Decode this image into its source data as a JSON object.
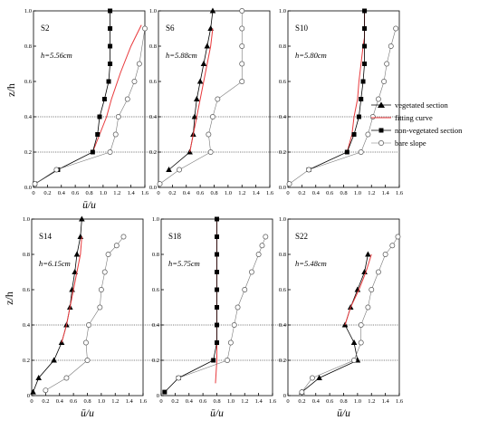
{
  "chart_data": [
    {
      "type": "line",
      "title": "S2",
      "annotation": "h=5.56cm",
      "xlabel": "ū/u",
      "ylabel": "z/h",
      "xlim": [
        0,
        1.6
      ],
      "ylim": [
        0,
        1
      ],
      "xticks": [
        "0",
        "0.2",
        "0.4",
        "0.6",
        "0.8",
        "1.0",
        "1.2",
        "1.4",
        "1.6"
      ],
      "yticks": [
        "0.0",
        "0.2",
        "0.4",
        "0.6",
        "0.8",
        "1.0"
      ],
      "series": [
        {
          "name": "vegetated section",
          "marker": "triangle",
          "x": [],
          "y": []
        },
        {
          "name": "fitting curve",
          "color": "#e8393c",
          "x": [
            0.85,
            0.95,
            1.05,
            1.12,
            1.25,
            1.4,
            1.55
          ],
          "y": [
            0.2,
            0.3,
            0.4,
            0.5,
            0.65,
            0.8,
            0.92
          ]
        },
        {
          "name": "non-vegetated section",
          "marker": "square",
          "x": [
            0.02,
            0.35,
            0.85,
            0.92,
            0.95,
            1.02,
            1.08,
            1.1,
            1.1,
            1.1,
            1.1
          ],
          "y": [
            0.02,
            0.1,
            0.2,
            0.3,
            0.4,
            0.5,
            0.6,
            0.7,
            0.8,
            0.9,
            1.0
          ]
        },
        {
          "name": "bare slope",
          "marker": "circle",
          "x": [
            0.02,
            0.33,
            1.1,
            1.18,
            1.22,
            1.35,
            1.45,
            1.52,
            1.6
          ],
          "y": [
            0.02,
            0.1,
            0.2,
            0.3,
            0.4,
            0.5,
            0.6,
            0.7,
            0.9
          ]
        }
      ],
      "guides_y": [
        0.2,
        0.4
      ]
    },
    {
      "type": "line",
      "title": "S6",
      "annotation": "h=5.88cm",
      "xlabel": "",
      "ylabel": "",
      "xlim": [
        0,
        1.6
      ],
      "ylim": [
        0,
        1
      ],
      "xticks": [
        "0",
        "0.2",
        "0.4",
        "0.6",
        "0.8",
        "1.0",
        "1.2",
        "1.4",
        "1.6"
      ],
      "yticks": [
        "0.0",
        "0.2",
        "0.4",
        "0.6",
        "0.8",
        "1.0"
      ],
      "series": [
        {
          "name": "vegetated section",
          "marker": "triangle",
          "x": [
            0.15,
            0.45,
            0.5,
            0.52,
            0.55,
            0.6,
            0.65,
            0.7,
            0.75,
            0.78
          ],
          "y": [
            0.1,
            0.2,
            0.3,
            0.4,
            0.5,
            0.6,
            0.7,
            0.8,
            0.9,
            1.0
          ]
        },
        {
          "name": "fitting curve",
          "color": "#e8393c",
          "x": [
            0.45,
            0.5,
            0.55,
            0.6,
            0.65,
            0.7,
            0.75,
            0.78
          ],
          "y": [
            0.2,
            0.3,
            0.4,
            0.5,
            0.6,
            0.7,
            0.8,
            0.9
          ]
        },
        {
          "name": "non-vegetated section",
          "marker": "square",
          "x": [],
          "y": []
        },
        {
          "name": "bare slope",
          "marker": "circle",
          "x": [
            0.02,
            0.3,
            0.75,
            0.72,
            0.78,
            0.85,
            1.2,
            1.2,
            1.2,
            1.2,
            1.2
          ],
          "y": [
            0.02,
            0.1,
            0.2,
            0.3,
            0.4,
            0.5,
            0.6,
            0.7,
            0.8,
            0.9,
            1.0
          ]
        }
      ],
      "guides_y": [
        0.2,
        0.4
      ]
    },
    {
      "type": "line",
      "title": "S10",
      "annotation": "h=5.80cm",
      "xlabel": "",
      "ylabel": "",
      "xlim": [
        0,
        1.6
      ],
      "ylim": [
        0,
        1
      ],
      "xticks": [
        "0",
        "0.2",
        "0.4",
        "0.6",
        "0.8",
        "1.0",
        "1.2",
        "1.4",
        "1.6"
      ],
      "yticks": [
        "0.0",
        "0.2",
        "0.4",
        "0.6",
        "0.8",
        "1.0"
      ],
      "series": [
        {
          "name": "vegetated section",
          "marker": "triangle",
          "x": [],
          "y": []
        },
        {
          "name": "fitting curve",
          "color": "#e8393c",
          "x": [
            0.85,
            0.92,
            0.95,
            1.0,
            1.02,
            1.05,
            1.08,
            1.1,
            1.1,
            1.1
          ],
          "y": [
            0.2,
            0.3,
            0.4,
            0.5,
            0.6,
            0.7,
            0.8,
            0.85,
            0.9,
            1.0
          ]
        },
        {
          "name": "non-vegetated section",
          "marker": "square",
          "x": [
            0.3,
            0.85,
            0.95,
            1.02,
            1.05,
            1.08,
            1.1,
            1.1,
            1.1,
            1.1
          ],
          "y": [
            0.1,
            0.2,
            0.3,
            0.4,
            0.5,
            0.6,
            0.7,
            0.8,
            0.9,
            1.0
          ]
        },
        {
          "name": "bare slope",
          "marker": "circle",
          "x": [
            0.02,
            0.3,
            1.05,
            1.15,
            1.22,
            1.3,
            1.38,
            1.42,
            1.48,
            1.55
          ],
          "y": [
            0.02,
            0.1,
            0.2,
            0.3,
            0.4,
            0.5,
            0.6,
            0.7,
            0.8,
            0.9
          ]
        }
      ],
      "guides_y": [
        0.2,
        0.4
      ]
    },
    {
      "type": "line",
      "title": "S14",
      "annotation": "h=6.15cm",
      "xlabel": "ū/u",
      "ylabel": "z/h",
      "xlim": [
        0,
        1.6
      ],
      "ylim": [
        0,
        1
      ],
      "xticks": [
        "0",
        "0.2",
        "0.4",
        "0.6",
        "0.8",
        "1.0",
        "1.2",
        "1.4",
        "1.6"
      ],
      "yticks": [
        "0",
        "0.2",
        "0.4",
        "0.6",
        "0.8",
        "1.0"
      ],
      "series": [
        {
          "name": "vegetated section",
          "marker": "triangle",
          "x": [
            0.02,
            0.1,
            0.32,
            0.43,
            0.5,
            0.55,
            0.58,
            0.62,
            0.65,
            0.7,
            0.72
          ],
          "y": [
            0.02,
            0.1,
            0.2,
            0.3,
            0.4,
            0.5,
            0.6,
            0.7,
            0.8,
            0.9,
            1.0
          ]
        },
        {
          "name": "fitting curve",
          "color": "#e8393c",
          "x": [
            0.43,
            0.5,
            0.55,
            0.6,
            0.65,
            0.7,
            0.72
          ],
          "y": [
            0.3,
            0.4,
            0.5,
            0.6,
            0.7,
            0.8,
            0.9
          ]
        },
        {
          "name": "non-vegetated section",
          "marker": "square",
          "x": [],
          "y": []
        },
        {
          "name": "bare slope",
          "marker": "circle",
          "x": [
            0.2,
            0.5,
            0.8,
            0.78,
            0.82,
            0.98,
            1.0,
            1.05,
            1.1,
            1.22,
            1.32
          ],
          "y": [
            0.03,
            0.1,
            0.2,
            0.3,
            0.4,
            0.5,
            0.6,
            0.7,
            0.8,
            0.85,
            0.9
          ]
        }
      ],
      "guides_y": [
        0.2,
        0.4
      ]
    },
    {
      "type": "line",
      "title": "S18",
      "annotation": "h=5.75cm",
      "xlabel": "ū/u",
      "ylabel": "",
      "xlim": [
        0,
        1.6
      ],
      "ylim": [
        0,
        1
      ],
      "xticks": [
        "0",
        "0.2",
        "0.4",
        "0.6",
        "0.8",
        "1.0",
        "1.2",
        "1.4",
        "1.6"
      ],
      "yticks": [
        "0",
        "0.2",
        "0.4",
        "0.6",
        "0.8",
        "1.0"
      ],
      "series": [
        {
          "name": "vegetated section",
          "marker": "triangle",
          "x": [],
          "y": []
        },
        {
          "name": "fitting curve",
          "color": "#e8393c",
          "x": [
            0.78,
            0.8,
            0.8,
            0.8,
            0.8,
            0.8,
            0.8,
            0.8,
            0.8
          ],
          "y": [
            0.07,
            0.2,
            0.3,
            0.4,
            0.5,
            0.6,
            0.7,
            0.8,
            1.0
          ]
        },
        {
          "name": "non-vegetated section",
          "marker": "square",
          "x": [
            0.05,
            0.25,
            0.75,
            0.8,
            0.8,
            0.8,
            0.8,
            0.8,
            0.8,
            0.8,
            0.8
          ],
          "y": [
            0.02,
            0.1,
            0.2,
            0.3,
            0.4,
            0.5,
            0.6,
            0.7,
            0.8,
            0.9,
            1.0
          ]
        },
        {
          "name": "bare slope",
          "marker": "circle",
          "x": [
            0.25,
            0.95,
            1.0,
            1.05,
            1.1,
            1.2,
            1.3,
            1.4,
            1.45,
            1.5
          ],
          "y": [
            0.1,
            0.2,
            0.3,
            0.4,
            0.5,
            0.6,
            0.7,
            0.8,
            0.85,
            0.9
          ]
        }
      ],
      "guides_y": [
        0.2,
        0.4
      ]
    },
    {
      "type": "line",
      "title": "S22",
      "annotation": "h=5.48cm",
      "xlabel": "ū/u",
      "ylabel": "",
      "xlim": [
        0,
        1.6
      ],
      "ylim": [
        0,
        1
      ],
      "xticks": [
        "0",
        "0.2",
        "0.4",
        "0.6",
        "0.8",
        "1.0",
        "1.2",
        "1.4",
        "1.6"
      ],
      "yticks": [
        "0",
        "0.2",
        "0.4",
        "0.6",
        "0.8",
        "1.0"
      ],
      "series": [
        {
          "name": "vegetated section",
          "marker": "triangle",
          "x": [
            0.2,
            0.45,
            1.0,
            0.95,
            0.82,
            0.9,
            1.0,
            1.1,
            1.15
          ],
          "y": [
            0.02,
            0.1,
            0.2,
            0.3,
            0.4,
            0.5,
            0.6,
            0.7,
            0.8
          ]
        },
        {
          "name": "fitting curve",
          "color": "#e8393c",
          "x": [
            0.82,
            0.9,
            1.02,
            1.12,
            1.2
          ],
          "y": [
            0.4,
            0.5,
            0.6,
            0.7,
            0.8
          ]
        },
        {
          "name": "non-vegetated section",
          "marker": "square",
          "x": [],
          "y": []
        },
        {
          "name": "bare slope",
          "marker": "circle",
          "x": [
            0.2,
            0.35,
            0.95,
            1.05,
            1.05,
            1.15,
            1.2,
            1.3,
            1.4,
            1.5,
            1.58
          ],
          "y": [
            0.02,
            0.1,
            0.2,
            0.3,
            0.4,
            0.5,
            0.6,
            0.7,
            0.8,
            0.85,
            0.9
          ]
        }
      ],
      "guides_y": [
        0.2,
        0.4
      ]
    }
  ],
  "legend": {
    "items": [
      {
        "label": "vegetated section",
        "marker": "triangle"
      },
      {
        "label": "fitting curve",
        "marker": "line"
      },
      {
        "label": "non-vegetated section",
        "marker": "square"
      },
      {
        "label": "bare slope",
        "marker": "circle"
      }
    ],
    "placement": "right"
  },
  "colors": {
    "fitting_curve": "#e8393c",
    "markers": "#000000",
    "bare_slope_line": "#777777"
  }
}
